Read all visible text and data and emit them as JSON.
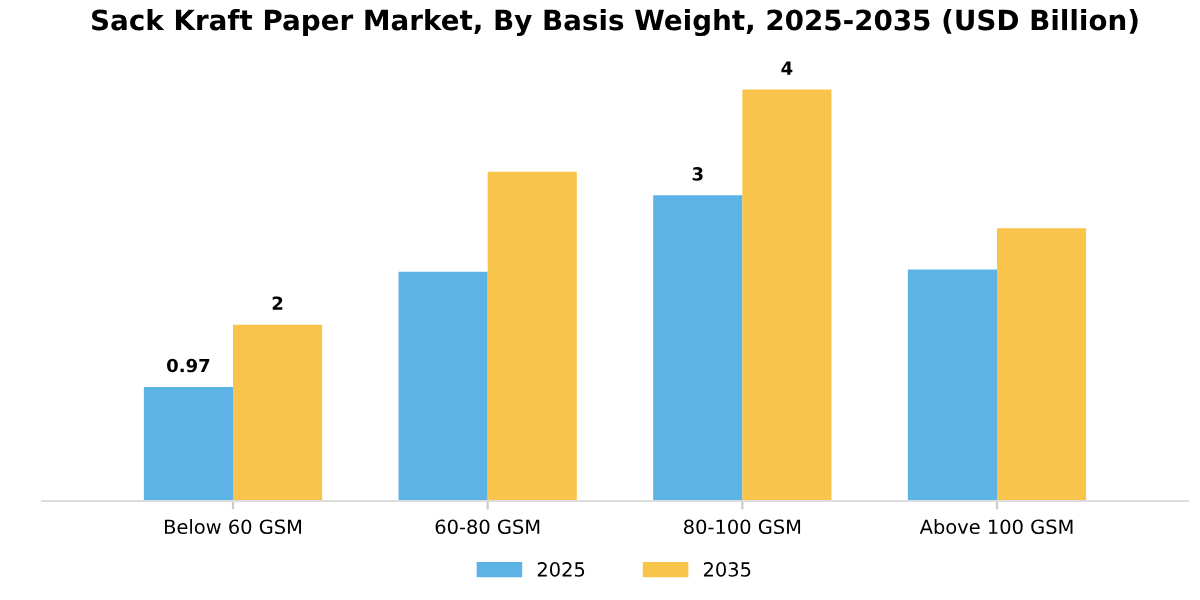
{
  "chart_data": {
    "type": "bar",
    "title": "Sack Kraft Paper Market, By Basis Weight, 2025-2035 (USD Billion)",
    "categories": [
      "Below 60 GSM",
      "60-80 GSM",
      "80-100 GSM",
      "Above 100 GSM"
    ],
    "series": [
      {
        "name": "2025",
        "color": "#5db3e6",
        "values": [
          0.97,
          1.95,
          2.6,
          1.97
        ],
        "value_labels": [
          "0.97",
          null,
          "3",
          null
        ]
      },
      {
        "name": "2035",
        "color": "#f9c44c",
        "values": [
          1.5,
          2.8,
          3.5,
          2.32
        ],
        "value_labels": [
          "2",
          null,
          "4",
          null
        ]
      }
    ],
    "legend": "bottom",
    "grid": false
  }
}
